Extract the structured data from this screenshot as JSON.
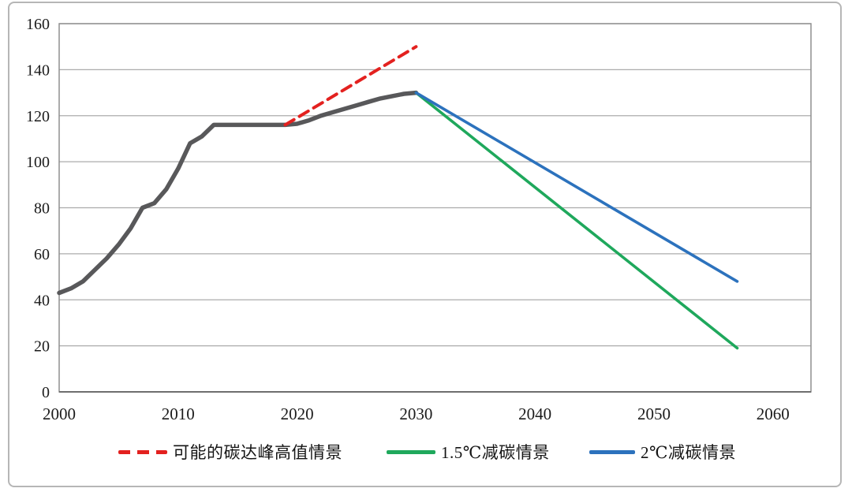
{
  "frame": {
    "border_color": "#b6b6b6",
    "background": "#ffffff"
  },
  "chart_data": {
    "type": "line",
    "title": "",
    "xlabel": "",
    "ylabel": "",
    "xlim": [
      2000,
      2063.2
    ],
    "ylim": [
      0,
      160
    ],
    "x_ticks": [
      2000,
      2010,
      2020,
      2030,
      2040,
      2050,
      2060
    ],
    "y_ticks": [
      0,
      20,
      40,
      60,
      80,
      100,
      120,
      140,
      160
    ],
    "grid": "horizontal",
    "gridline_color": "#ababab",
    "plot_border_color": "#8f8f8f",
    "axis_line_color": "#6e6e6e",
    "tick_label_color": "#1b1b1b",
    "legend_position": "bottom",
    "series": [
      {
        "id": "historical-emissions",
        "color": "#58585a",
        "width": 5.5,
        "dashed": false,
        "points": [
          [
            2000,
            43
          ],
          [
            2001,
            45
          ],
          [
            2002,
            48
          ],
          [
            2003,
            53
          ],
          [
            2004,
            58
          ],
          [
            2005,
            64
          ],
          [
            2006,
            71
          ],
          [
            2007,
            80
          ],
          [
            2008,
            82
          ],
          [
            2009,
            88
          ],
          [
            2010,
            97
          ],
          [
            2011,
            108
          ],
          [
            2012,
            111
          ],
          [
            2013,
            116
          ],
          [
            2014,
            116
          ],
          [
            2015,
            116
          ],
          [
            2016,
            116
          ],
          [
            2017,
            116
          ],
          [
            2018,
            116
          ],
          [
            2019,
            116
          ],
          [
            2020,
            116.5
          ],
          [
            2021,
            118
          ],
          [
            2022,
            120
          ],
          [
            2023,
            121.5
          ],
          [
            2024,
            123
          ],
          [
            2025,
            124.5
          ],
          [
            2026,
            126
          ],
          [
            2027,
            127.5
          ],
          [
            2028,
            128.5
          ],
          [
            2029,
            129.5
          ],
          [
            2030,
            130
          ]
        ]
      },
      {
        "id": "peak-high-scenario",
        "label": "可能的碳达峰高值情景",
        "color": "#e3211f",
        "width": 4,
        "dashed": true,
        "points": [
          [
            2019,
            116
          ],
          [
            2030,
            150
          ]
        ]
      },
      {
        "id": "reduction-1p5c-scenario",
        "label": "1.5℃减碳情景",
        "color": "#1fa85c",
        "width": 3.6,
        "dashed": false,
        "points": [
          [
            2030,
            130
          ],
          [
            2057,
            19
          ]
        ]
      },
      {
        "id": "reduction-2c-scenario",
        "label": "2℃减碳情景",
        "color": "#2c72bd",
        "width": 3.6,
        "dashed": false,
        "points": [
          [
            2030,
            130
          ],
          [
            2057,
            48
          ]
        ]
      }
    ],
    "legend": [
      {
        "label": "可能的碳达峰高值情景",
        "color": "#e3211f",
        "dashed": true
      },
      {
        "label": "1.5℃减碳情景",
        "color": "#1fa85c",
        "dashed": false
      },
      {
        "label": "2℃减碳情景",
        "color": "#2c72bd",
        "dashed": false
      }
    ]
  }
}
